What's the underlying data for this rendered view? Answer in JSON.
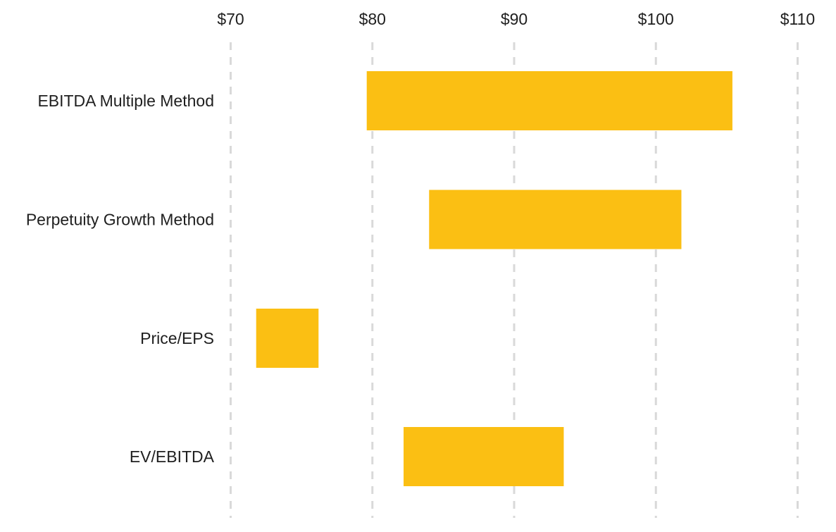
{
  "chart_data": {
    "type": "bar",
    "orientation": "horizontal",
    "style": "floating-range",
    "categories": [
      "EBITDA Multiple Method",
      "Perpetuity Growth Method",
      "Price/EPS",
      "EV/EBITDA"
    ],
    "series": [
      {
        "values": [
          {
            "low": 79.6,
            "high": 105.4
          },
          {
            "low": 84.0,
            "high": 101.8
          },
          {
            "low": 71.8,
            "high": 76.2
          },
          {
            "low": 82.2,
            "high": 93.5
          }
        ]
      }
    ],
    "x_ticks": [
      70,
      80,
      90,
      100,
      110
    ],
    "x_tick_labels": [
      "$70",
      "$80",
      "$90",
      "$100",
      "$110"
    ],
    "xlim": [
      70,
      110
    ],
    "x_axis_position": "top",
    "grid": true,
    "legend": "none",
    "title": "",
    "xlabel": "",
    "ylabel": "",
    "colors": {
      "bar": "#FBBF13",
      "grid": "#D9D9D9",
      "text": "#1F1F1F",
      "background": "#FFFFFF"
    }
  }
}
